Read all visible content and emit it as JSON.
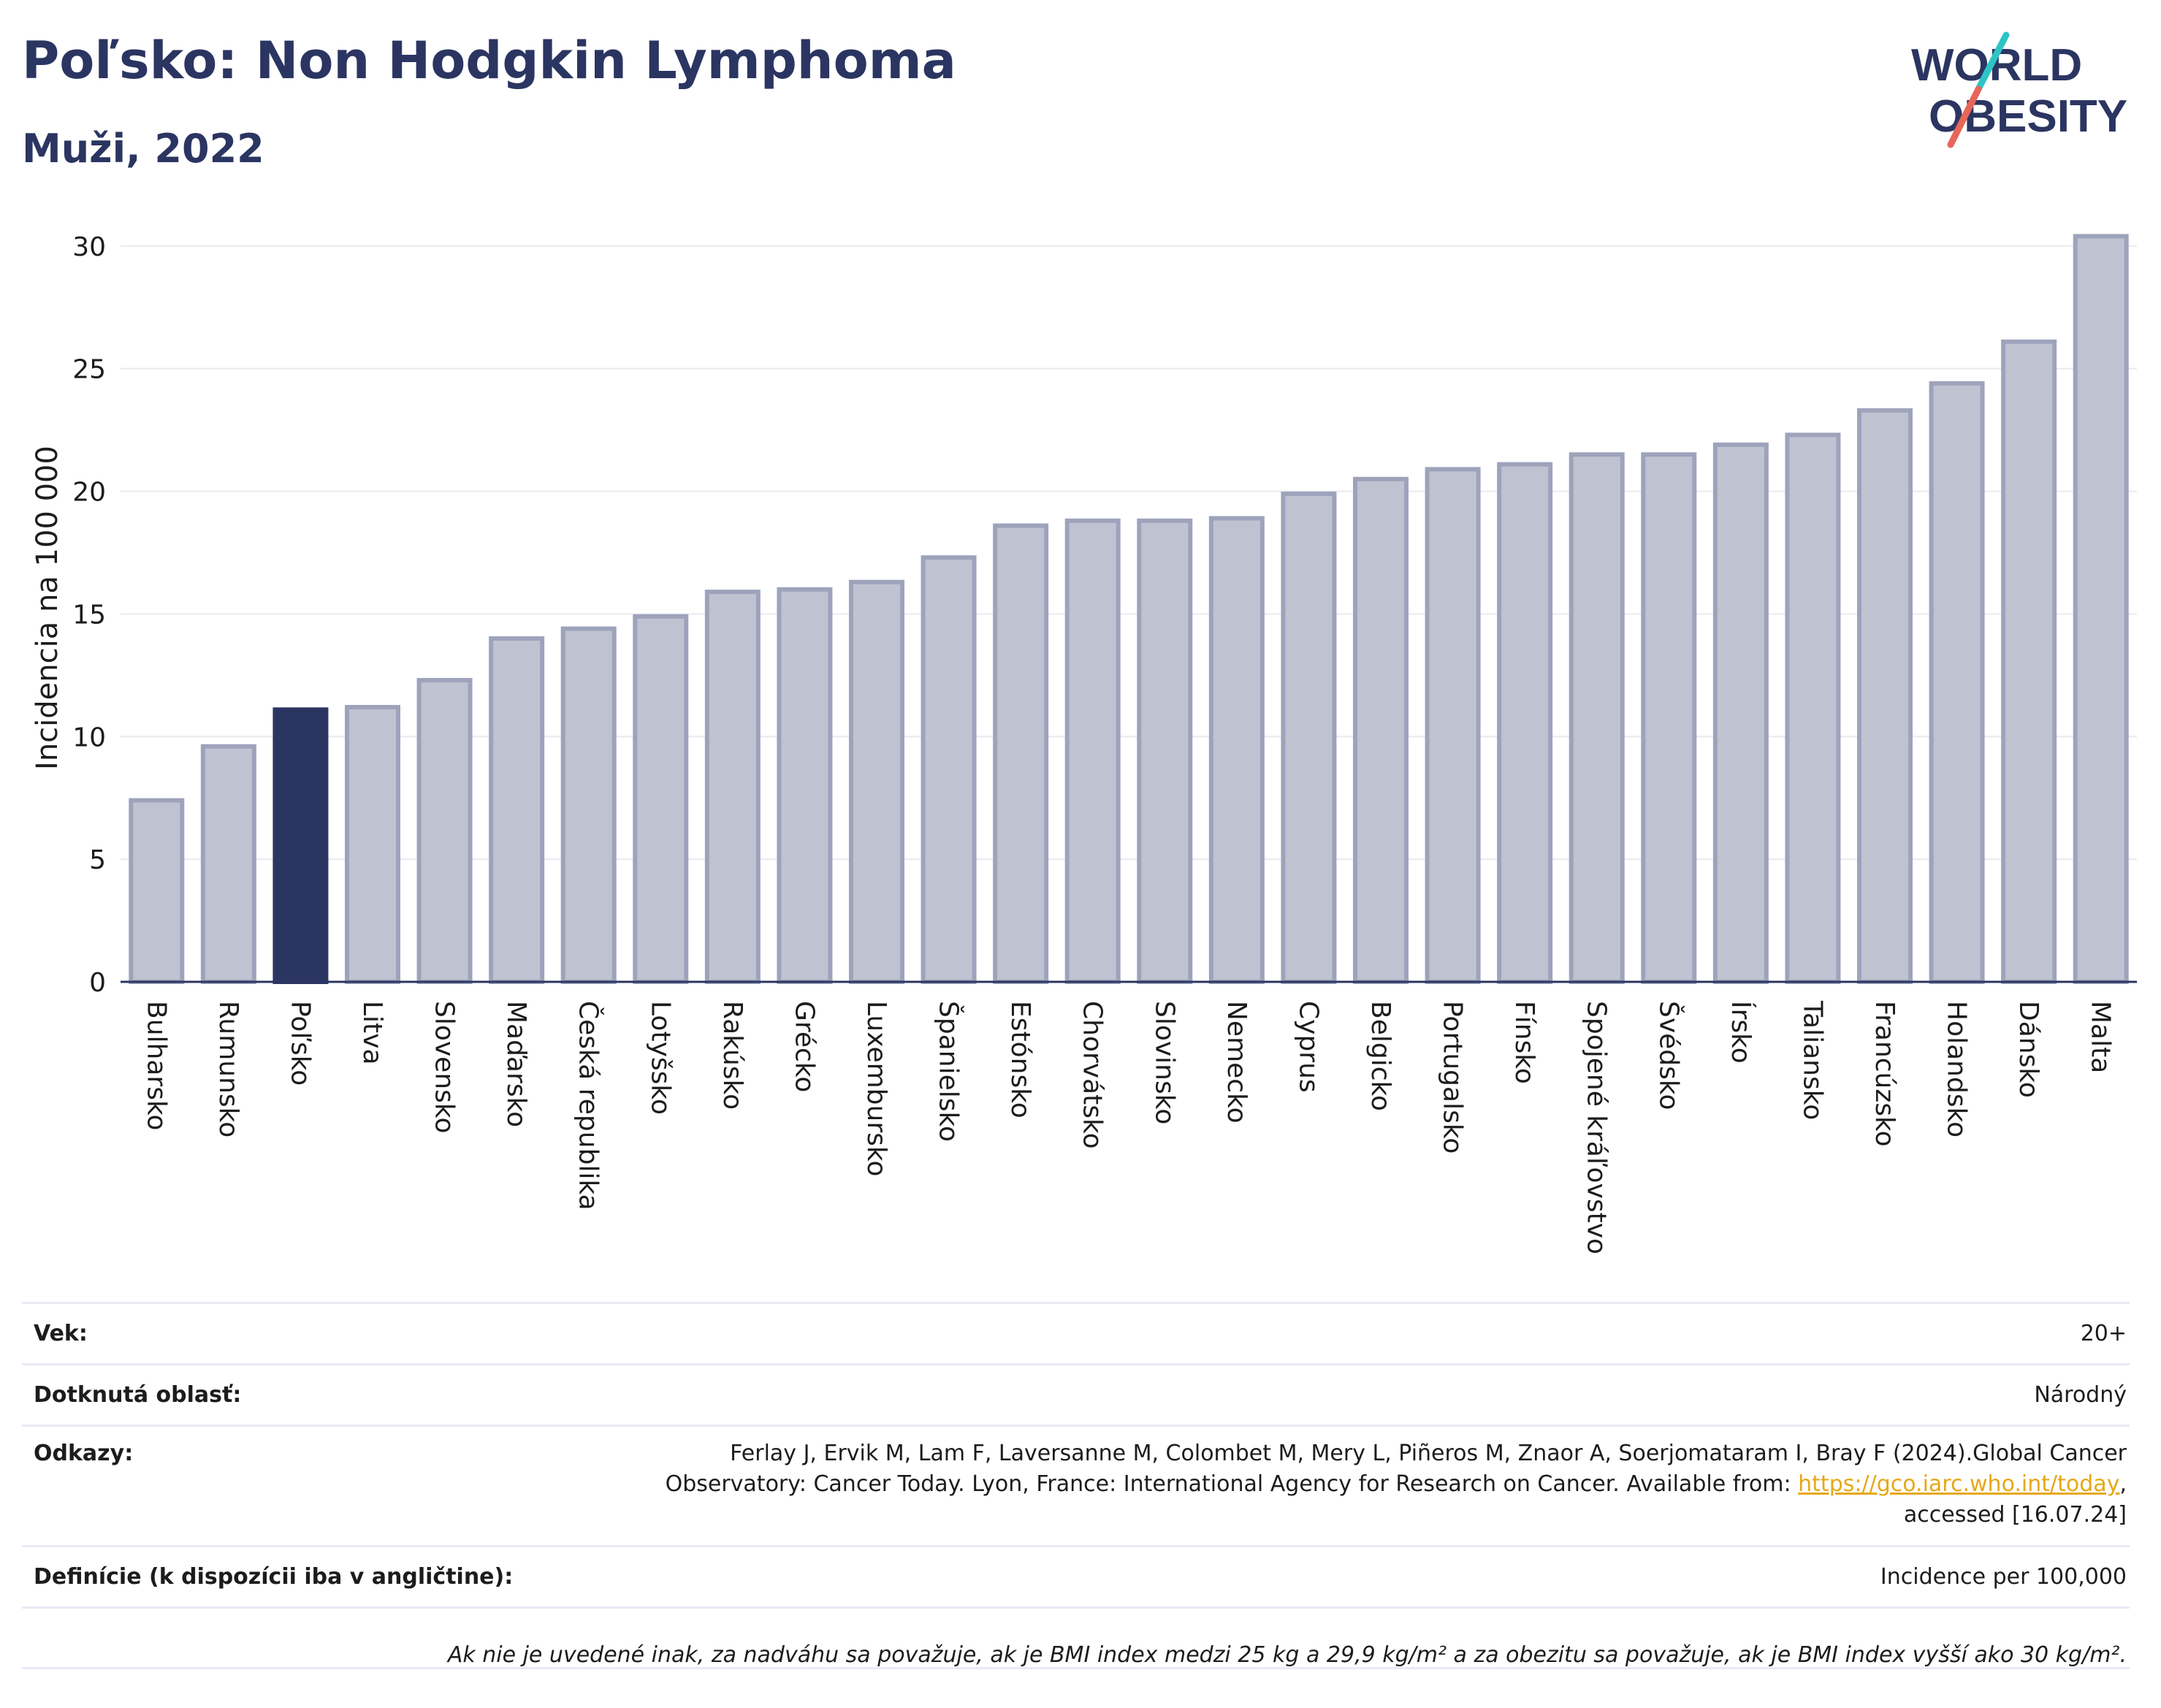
{
  "header": {
    "title": "Poľsko: Non Hodgkin Lymphoma",
    "subtitle": "Muži, 2022"
  },
  "logo": {
    "line1": "WORLD",
    "line2": "OBESITY",
    "slash_colors": [
      "#2ec4c6",
      "#e8665a"
    ]
  },
  "colors": {
    "bar": "#bfc3d1",
    "bar_border": "#9ea3bc",
    "highlight": "#2b3561",
    "axis": "#2b3561",
    "grid": "#e9eaf0"
  },
  "chart_data": {
    "type": "bar",
    "title": "Poľsko: Non Hodgkin Lymphoma",
    "subtitle": "Muži, 2022",
    "ylabel": "Incidencia na 100 000",
    "ylim": [
      0,
      30.5
    ],
    "yticks": [
      0,
      5,
      10,
      15,
      20,
      25,
      30
    ],
    "highlight": "Poľsko",
    "grid": true,
    "categories": [
      "Bulharsko",
      "Rumunsko",
      "Poľsko",
      "Litva",
      "Slovensko",
      "Maďarsko",
      "Česká republika",
      "Lotyšsko",
      "Rakúsko",
      "Grécko",
      "Luxembursko",
      "Španielsko",
      "Estónsko",
      "Chorvátsko",
      "Slovinsko",
      "Nemecko",
      "Cyprus",
      "Belgicko",
      "Portugalsko",
      "Fínsko",
      "Spojené kráľovstvo",
      "Švédsko",
      "Írsko",
      "Taliansko",
      "Francúzsko",
      "Holandsko",
      "Dánsko",
      "Malta"
    ],
    "values": [
      7.4,
      9.6,
      11.1,
      11.2,
      12.3,
      14.0,
      14.4,
      14.9,
      15.9,
      16.0,
      16.3,
      17.3,
      18.6,
      18.8,
      18.8,
      18.9,
      19.9,
      20.5,
      20.9,
      21.1,
      21.5,
      21.5,
      21.9,
      22.3,
      23.3,
      24.4,
      26.1,
      30.4
    ]
  },
  "info": {
    "age_label": "Vek:",
    "age_value": "20+",
    "area_label": "Dotknutá oblasť:",
    "area_value": "Národný",
    "refs_label": "Odkazy:",
    "refs_line1": "Ferlay J, Ervik M, Lam F, Laversanne M, Colombet M, Mery L, Piñeros M, Znaor A, Soerjomataram I, Bray F (2024).Global Cancer",
    "refs_line2": "Observatory: Cancer Today. Lyon, France: International Agency for Research on Cancer. Available from:",
    "refs_link": "https://gco.iarc.who.int/today",
    "refs_line2_end": ",",
    "refs_line3": "accessed [16.07.24]",
    "defs_label": "Definície (k dispozícii iba v angličtine):",
    "defs_value": "Incidence per 100,000",
    "note": "Ak nie je uvedené inak, za nadváhu sa považuje, ak je BMI index medzi 25 kg a 29,9 kg/m² a za obezitu sa považuje, ak je BMI index vyšší ako 30 kg/m²."
  }
}
